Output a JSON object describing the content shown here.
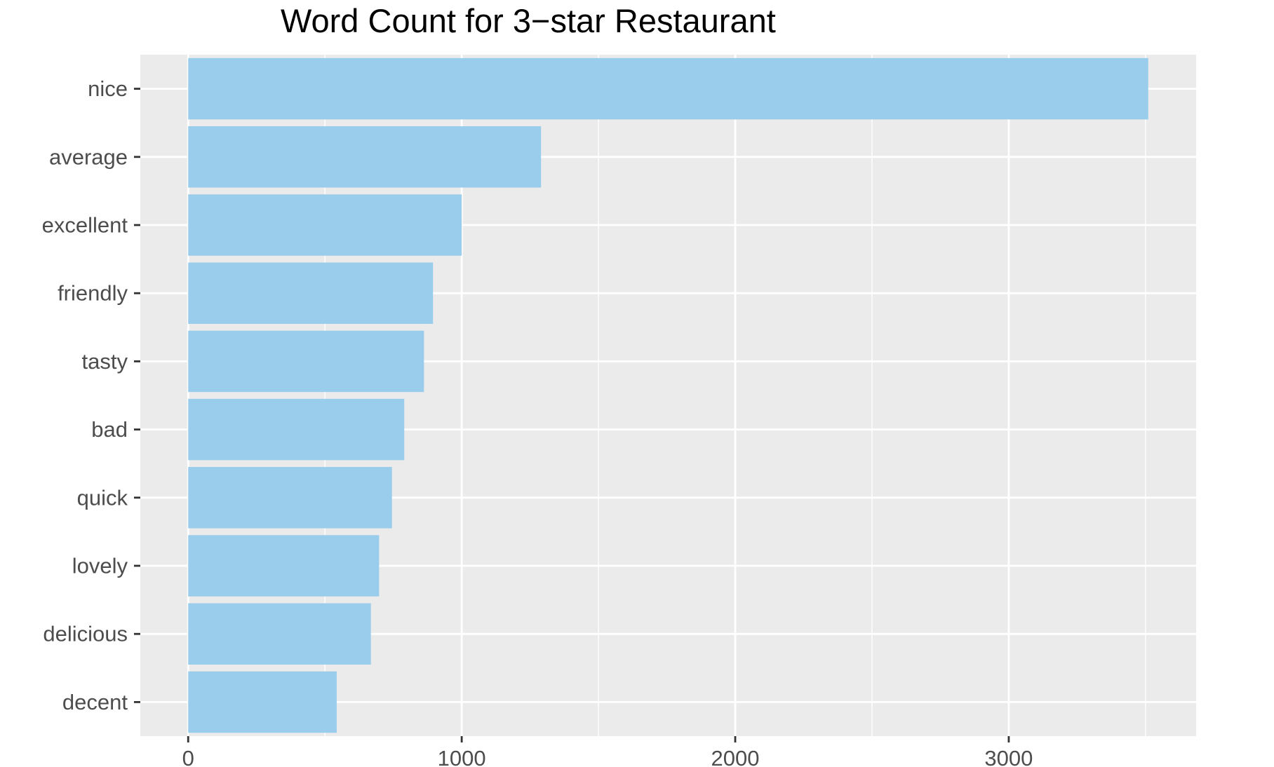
{
  "chart_data": {
    "type": "bar",
    "orientation": "horizontal",
    "title": "Word Count for 3−star Restaurant",
    "xlabel": "",
    "ylabel": "",
    "categories": [
      "nice",
      "average",
      "excellent",
      "friendly",
      "tasty",
      "bad",
      "quick",
      "lovely",
      "delicious",
      "decent"
    ],
    "values": [
      3510,
      1290,
      1000,
      895,
      862,
      790,
      745,
      698,
      668,
      543
    ],
    "xlim": [
      -175,
      3685
    ],
    "x_ticks": [
      0,
      1000,
      2000,
      3000
    ],
    "x_tick_labels": [
      "0",
      "1000",
      "2000",
      "3000"
    ],
    "grid": true,
    "legend": "none"
  },
  "colors": {
    "bar_fill": "#99cdeb",
    "panel_background": "#ebebeb",
    "grid_line": "#ffffff",
    "tick_text": "#4d4d4d",
    "tick_mark": "#333333",
    "title_text": "#000000"
  }
}
